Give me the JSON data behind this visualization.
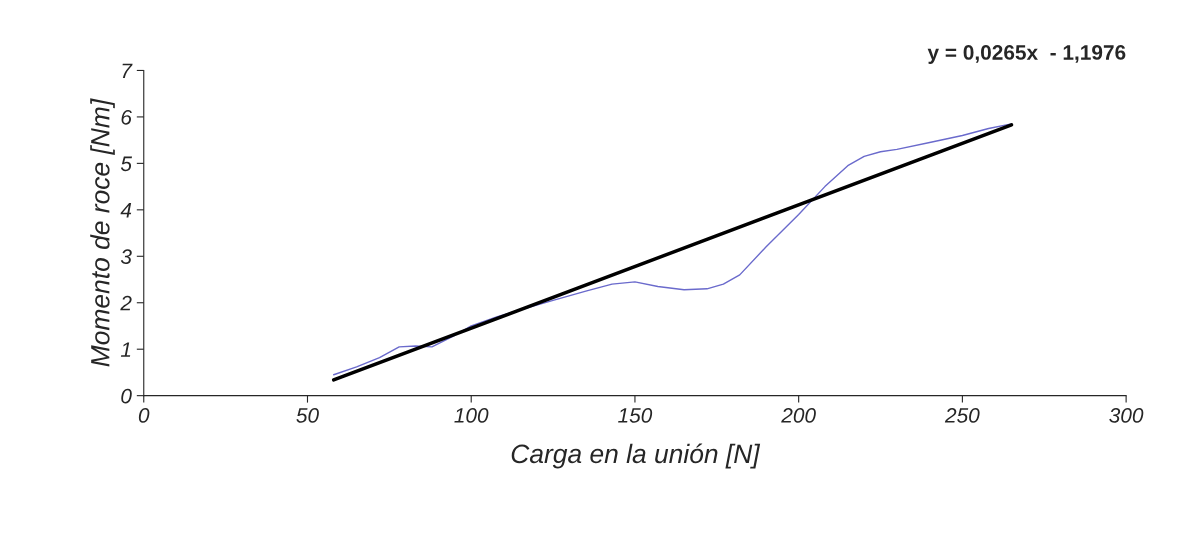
{
  "chart_data": {
    "type": "line",
    "xlabel": "Carga en la unión [N]",
    "ylabel": "Momento de roce [Nm]",
    "xlim": [
      0,
      300
    ],
    "xticks": [
      0,
      50,
      100,
      150,
      200,
      250,
      300
    ],
    "ylim": [
      0,
      7
    ],
    "yticks": [
      0,
      1,
      2,
      3,
      4,
      5,
      6,
      7
    ],
    "grid": false,
    "legend": false,
    "series": [
      {
        "color": "#6a6acc",
        "x": [
          58,
          65,
          72,
          78,
          83,
          88,
          95,
          100,
          108,
          115,
          125,
          135,
          143,
          150,
          157,
          165,
          172,
          177,
          182,
          190,
          200,
          208,
          215,
          220,
          225,
          230,
          240,
          250,
          258,
          265
        ],
        "values": [
          0.45,
          0.62,
          0.82,
          1.05,
          1.07,
          1.05,
          1.3,
          1.5,
          1.7,
          1.85,
          2.05,
          2.25,
          2.4,
          2.45,
          2.35,
          2.28,
          2.3,
          2.4,
          2.6,
          3.2,
          3.9,
          4.5,
          4.95,
          5.15,
          5.25,
          5.3,
          5.45,
          5.6,
          5.75,
          5.85
        ]
      },
      {
        "type": "line",
        "color": "#000000",
        "x": [
          58,
          265
        ],
        "values": [
          0.34,
          5.83
        ]
      }
    ],
    "annotations": [
      "y = 0,0265x  - 1,1976"
    ]
  }
}
